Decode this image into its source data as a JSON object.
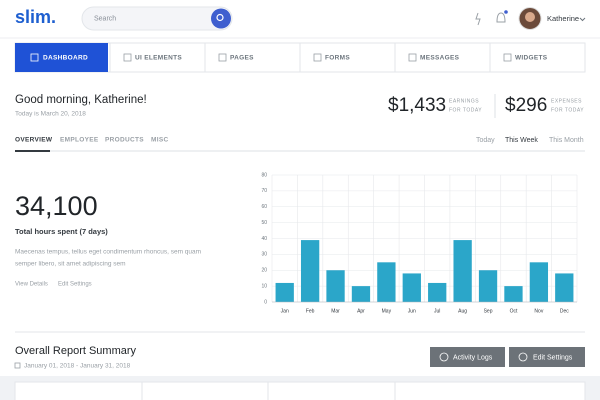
{
  "header": {
    "logo": "slim.",
    "search_placeholder": "Search",
    "user": "Katherine"
  },
  "nav": [
    "DASHBOARD",
    "UI ELEMENTS",
    "PAGES",
    "FORMS",
    "MESSAGES",
    "WIDGETS"
  ],
  "greeting": {
    "title": "Good morning, Katherine!",
    "date": "Today is March 20, 2018"
  },
  "stats": [
    {
      "value": "$1,433",
      "label": [
        "EARNINGS",
        "FOR TODAY"
      ]
    },
    {
      "value": "$296",
      "label": [
        "EXPENSES",
        "FOR TODAY"
      ]
    }
  ],
  "tabs": [
    "OVERVIEW",
    "EMPLOYEE",
    "PRODUCTS",
    "MISC"
  ],
  "periods": [
    "Today",
    "This Week",
    "This Month"
  ],
  "summary": {
    "value": "34,100",
    "label": "Total hours spent (7 days)",
    "text": [
      "Maecenas tempus, tellus eget condimentum rhoncus, sem quam",
      "semper libero, sit amet adipiscing sem"
    ],
    "links": [
      "View Details",
      "Edit Settings"
    ]
  },
  "chart": {
    "type": "bar",
    "categories": [
      "Jan",
      "Feb",
      "Mar",
      "Apr",
      "May",
      "Jun",
      "Jul",
      "Aug",
      "Sep",
      "Oct",
      "Nov",
      "Dec"
    ],
    "values": [
      12,
      39,
      20,
      10,
      25,
      18,
      12,
      39,
      20,
      10,
      25,
      18
    ],
    "color": "#2ba6c9",
    "ylim": [
      0,
      80
    ],
    "yticks": [
      0,
      10,
      20,
      30,
      40,
      50,
      60,
      70,
      80
    ],
    "grid": true
  },
  "report": {
    "title": "Overall Report Summary",
    "range": "January 01, 2018 - January 31, 2018",
    "buttons": [
      "Activity Logs",
      "Edit Settings"
    ]
  }
}
